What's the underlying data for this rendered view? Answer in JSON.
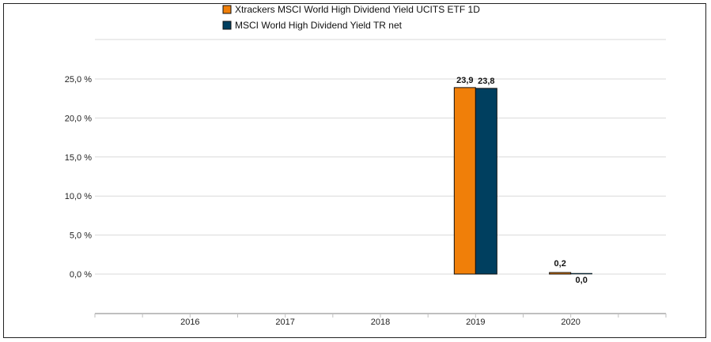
{
  "chart_data": {
    "type": "bar",
    "categories": [
      "2016",
      "2017",
      "2018",
      "2019",
      "2020"
    ],
    "series": [
      {
        "name": "Xtrackers MSCI World High Dividend Yield UCITS ETF  1D",
        "color": "#f07f09",
        "values": [
          null,
          null,
          null,
          23.9,
          0.2
        ],
        "labels": [
          "",
          "",
          "",
          "23,9",
          "0,2"
        ]
      },
      {
        "name": "MSCI World High Dividend Yield TR net",
        "color": "#003f5f",
        "values": [
          null,
          null,
          null,
          23.8,
          0.0
        ],
        "labels": [
          "",
          "",
          "",
          "23,8",
          "0,0"
        ]
      }
    ],
    "yticks": [
      0,
      5,
      10,
      15,
      20,
      25
    ],
    "ytick_labels": [
      "0,0 %",
      "5,0 %",
      "10,0 %",
      "15,0 %",
      "20,0 %",
      "25,0 %"
    ],
    "ylim": [
      0,
      25
    ],
    "grid": true,
    "legend_position": "top-center"
  }
}
